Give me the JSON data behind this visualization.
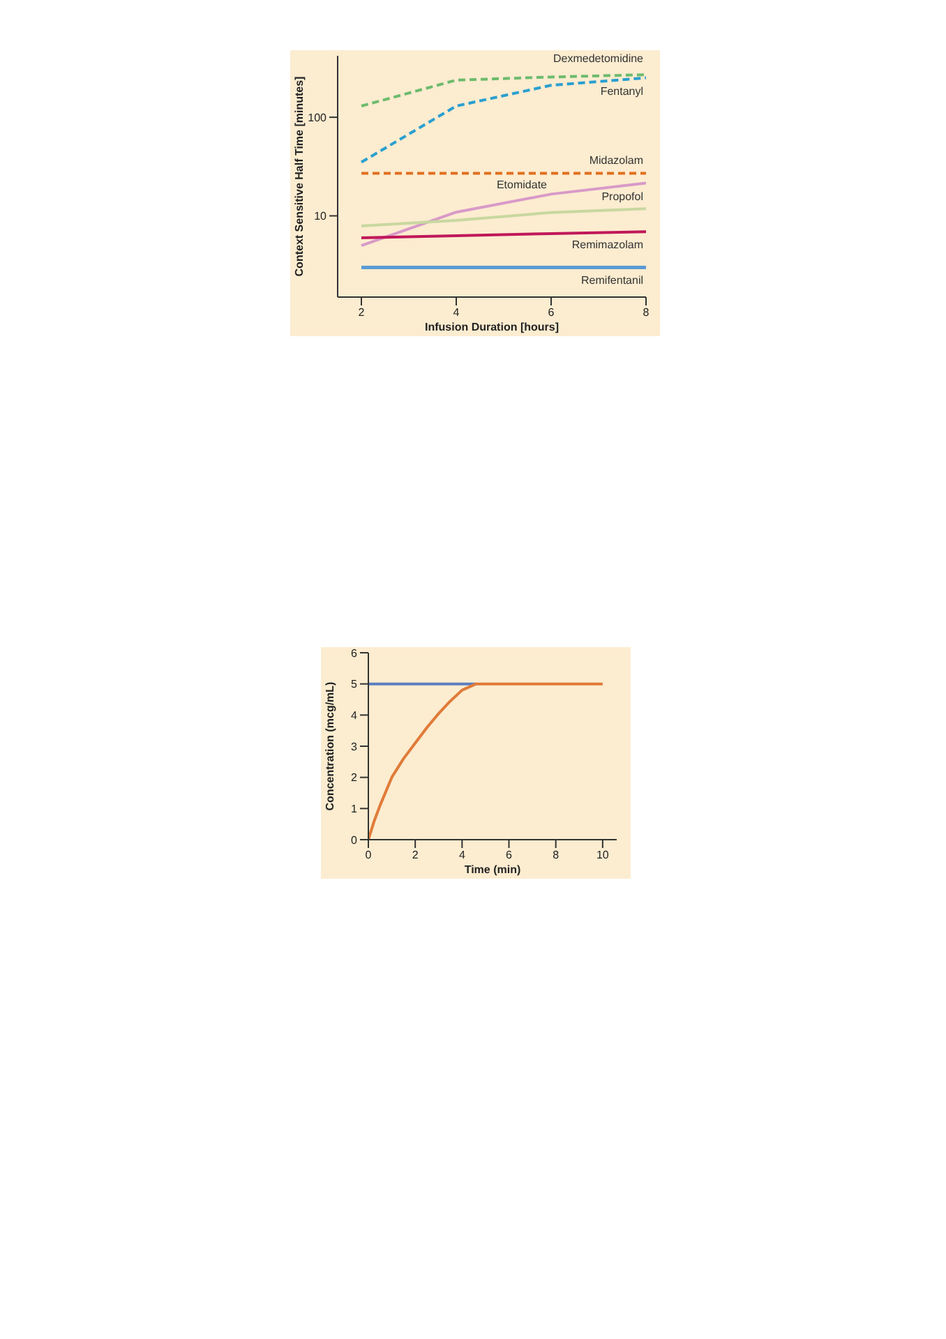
{
  "chart_data": [
    {
      "type": "line",
      "xlabel": "Infusion Duration [hours]",
      "ylabel": "Context Sensitive Half Time [minutes]",
      "x": [
        2,
        4,
        6,
        8
      ],
      "xlim": [
        1.5,
        8
      ],
      "xticks": [
        2,
        4,
        6,
        8
      ],
      "ylim": [
        1.5,
        420
      ],
      "yticks": [
        10,
        100
      ],
      "log": "y",
      "marker": "none",
      "series": [
        {
          "name": "Dexmedetomidine",
          "color": "#6dbb6d",
          "line_style": "dashed",
          "values": [
            130,
            238,
            256,
            270
          ]
        },
        {
          "name": "Fentanyl",
          "color": "#2a9fd0",
          "line_style": "dashed",
          "values": [
            35,
            130,
            211,
            251
          ]
        },
        {
          "name": "Midazolam",
          "color": "#e0701e",
          "line_style": "dashed",
          "values": [
            27,
            27,
            27,
            27
          ]
        },
        {
          "name": "Etomidate",
          "color": "#d89ac8",
          "line_style": "solid",
          "values": [
            5,
            10.9,
            16.6,
            21.5
          ]
        },
        {
          "name": "Propofol",
          "color": "#c8d8a0",
          "line_style": "solid",
          "values": [
            7.9,
            9,
            10.8,
            11.8
          ]
        },
        {
          "name": "Remimazolam",
          "color": "#c0185a",
          "line_style": "solid",
          "values": [
            6,
            6.3,
            6.6,
            6.9
          ]
        },
        {
          "name": "Remifentanil",
          "color": "#5b9bd5",
          "line_style": "solid",
          "values": [
            3,
            3,
            3,
            3
          ]
        }
      ]
    },
    {
      "type": "line",
      "xlabel": "Time (min)",
      "ylabel": "Concentration (mcg/mL)",
      "xlim": [
        0,
        10.6
      ],
      "xticks": [
        0,
        2,
        4,
        6,
        8,
        10
      ],
      "ylim": [
        0,
        6
      ],
      "yticks": [
        0,
        1,
        2,
        3,
        4,
        5,
        6
      ],
      "marker": "none",
      "series": [
        {
          "color": "#5b7fc0",
          "line_style": "solid",
          "x": [
            0,
            4.6
          ],
          "values": [
            5,
            5
          ]
        },
        {
          "color": "#e07b39",
          "line_style": "solid",
          "x": [
            0,
            0.25,
            0.5,
            1,
            1.5,
            2,
            2.5,
            3,
            3.5,
            4,
            4.6,
            10
          ],
          "values": [
            0,
            0.6,
            1.1,
            2,
            2.6,
            3.1,
            3.6,
            4.05,
            4.45,
            4.8,
            5,
            5
          ]
        }
      ]
    }
  ]
}
